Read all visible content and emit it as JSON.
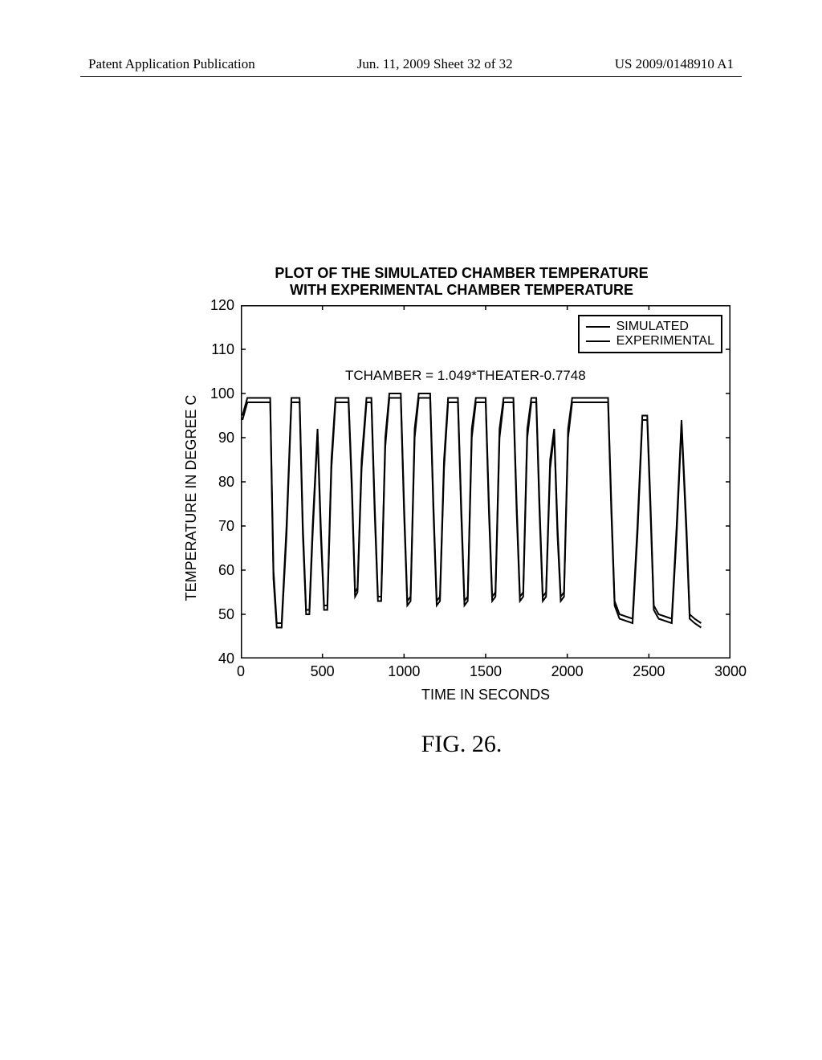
{
  "header": {
    "left": "Patent Application Publication",
    "center": "Jun. 11, 2009  Sheet 32 of 32",
    "right": "US 2009/0148910 A1"
  },
  "chart": {
    "type": "line",
    "title_line1": "PLOT OF THE SIMULATED CHAMBER TEMPERATURE",
    "title_line2": "WITH EXPERIMENTAL CHAMBER TEMPERATURE",
    "ylabel": "TEMPERATURE IN DEGREE C",
    "xlabel": "TIME IN SECONDS",
    "annotation": "TCHAMBER = 1.049*THEATER-0.7748",
    "xlim": [
      0,
      3000
    ],
    "ylim": [
      40,
      120
    ],
    "xticks": [
      0,
      500,
      1000,
      1500,
      2000,
      2500,
      3000
    ],
    "yticks": [
      40,
      50,
      60,
      70,
      80,
      90,
      100,
      110,
      120
    ],
    "legend": [
      "SIMULATED",
      "EXPERIMENTAL"
    ],
    "line_color": "#000000",
    "line_width": 2,
    "background_color": "#ffffff",
    "border_color": "#000000",
    "series_sim": [
      [
        10,
        95
      ],
      [
        40,
        99
      ],
      [
        180,
        99
      ],
      [
        200,
        60
      ],
      [
        220,
        48
      ],
      [
        250,
        48
      ],
      [
        280,
        70
      ],
      [
        310,
        99
      ],
      [
        360,
        99
      ],
      [
        380,
        70
      ],
      [
        400,
        51
      ],
      [
        420,
        51
      ],
      [
        440,
        70
      ],
      [
        470,
        92
      ],
      [
        490,
        70
      ],
      [
        510,
        52
      ],
      [
        530,
        52
      ],
      [
        555,
        85
      ],
      [
        580,
        99
      ],
      [
        660,
        99
      ],
      [
        680,
        80
      ],
      [
        700,
        55
      ],
      [
        715,
        56
      ],
      [
        740,
        85
      ],
      [
        770,
        99
      ],
      [
        800,
        99
      ],
      [
        820,
        75
      ],
      [
        840,
        54
      ],
      [
        860,
        54
      ],
      [
        885,
        90
      ],
      [
        910,
        100
      ],
      [
        980,
        100
      ],
      [
        1000,
        75
      ],
      [
        1020,
        53
      ],
      [
        1040,
        54
      ],
      [
        1065,
        92
      ],
      [
        1090,
        100
      ],
      [
        1160,
        100
      ],
      [
        1180,
        75
      ],
      [
        1200,
        53
      ],
      [
        1220,
        54
      ],
      [
        1245,
        85
      ],
      [
        1270,
        99
      ],
      [
        1330,
        99
      ],
      [
        1350,
        75
      ],
      [
        1370,
        53
      ],
      [
        1390,
        54
      ],
      [
        1415,
        92
      ],
      [
        1440,
        99
      ],
      [
        1500,
        99
      ],
      [
        1520,
        75
      ],
      [
        1540,
        54
      ],
      [
        1560,
        55
      ],
      [
        1585,
        92
      ],
      [
        1610,
        99
      ],
      [
        1670,
        99
      ],
      [
        1690,
        75
      ],
      [
        1710,
        54
      ],
      [
        1730,
        55
      ],
      [
        1755,
        92
      ],
      [
        1780,
        99
      ],
      [
        1810,
        99
      ],
      [
        1830,
        75
      ],
      [
        1850,
        54
      ],
      [
        1870,
        55
      ],
      [
        1895,
        85
      ],
      [
        1920,
        92
      ],
      [
        1940,
        70
      ],
      [
        1960,
        54
      ],
      [
        1980,
        55
      ],
      [
        2005,
        92
      ],
      [
        2030,
        99
      ],
      [
        2250,
        99
      ],
      [
        2270,
        75
      ],
      [
        2290,
        53
      ],
      [
        2320,
        50
      ],
      [
        2400,
        49
      ],
      [
        2430,
        70
      ],
      [
        2460,
        95
      ],
      [
        2490,
        95
      ],
      [
        2510,
        75
      ],
      [
        2530,
        52
      ],
      [
        2560,
        50
      ],
      [
        2640,
        49
      ],
      [
        2670,
        70
      ],
      [
        2700,
        94
      ],
      [
        2730,
        70
      ],
      [
        2750,
        50
      ],
      [
        2780,
        49
      ],
      [
        2820,
        48
      ]
    ],
    "series_exp": [
      [
        10,
        94
      ],
      [
        40,
        98
      ],
      [
        180,
        98
      ],
      [
        200,
        58
      ],
      [
        220,
        47
      ],
      [
        250,
        47
      ],
      [
        280,
        68
      ],
      [
        310,
        98
      ],
      [
        360,
        98
      ],
      [
        380,
        68
      ],
      [
        400,
        50
      ],
      [
        420,
        50
      ],
      [
        440,
        68
      ],
      [
        470,
        91
      ],
      [
        490,
        68
      ],
      [
        510,
        51
      ],
      [
        530,
        51
      ],
      [
        555,
        83
      ],
      [
        580,
        98
      ],
      [
        660,
        98
      ],
      [
        680,
        78
      ],
      [
        700,
        54
      ],
      [
        715,
        55
      ],
      [
        740,
        83
      ],
      [
        770,
        98
      ],
      [
        800,
        98
      ],
      [
        820,
        73
      ],
      [
        840,
        53
      ],
      [
        860,
        53
      ],
      [
        885,
        88
      ],
      [
        910,
        99
      ],
      [
        980,
        99
      ],
      [
        1000,
        73
      ],
      [
        1020,
        52
      ],
      [
        1040,
        53
      ],
      [
        1065,
        90
      ],
      [
        1090,
        99
      ],
      [
        1160,
        99
      ],
      [
        1180,
        73
      ],
      [
        1200,
        52
      ],
      [
        1220,
        53
      ],
      [
        1245,
        83
      ],
      [
        1270,
        98
      ],
      [
        1330,
        98
      ],
      [
        1350,
        73
      ],
      [
        1370,
        52
      ],
      [
        1390,
        53
      ],
      [
        1415,
        90
      ],
      [
        1440,
        98
      ],
      [
        1500,
        98
      ],
      [
        1520,
        73
      ],
      [
        1540,
        53
      ],
      [
        1560,
        54
      ],
      [
        1585,
        90
      ],
      [
        1610,
        98
      ],
      [
        1670,
        98
      ],
      [
        1690,
        73
      ],
      [
        1710,
        53
      ],
      [
        1730,
        54
      ],
      [
        1755,
        90
      ],
      [
        1780,
        98
      ],
      [
        1810,
        98
      ],
      [
        1830,
        73
      ],
      [
        1850,
        53
      ],
      [
        1870,
        54
      ],
      [
        1895,
        83
      ],
      [
        1920,
        91
      ],
      [
        1940,
        68
      ],
      [
        1960,
        53
      ],
      [
        1980,
        54
      ],
      [
        2005,
        90
      ],
      [
        2030,
        98
      ],
      [
        2250,
        98
      ],
      [
        2270,
        73
      ],
      [
        2290,
        52
      ],
      [
        2320,
        49
      ],
      [
        2400,
        48
      ],
      [
        2430,
        68
      ],
      [
        2460,
        94
      ],
      [
        2490,
        94
      ],
      [
        2510,
        73
      ],
      [
        2530,
        51
      ],
      [
        2560,
        49
      ],
      [
        2640,
        48
      ],
      [
        2670,
        68
      ],
      [
        2700,
        93
      ],
      [
        2730,
        68
      ],
      [
        2750,
        49
      ],
      [
        2780,
        48
      ],
      [
        2820,
        47
      ]
    ]
  },
  "caption": "FIG. 26."
}
